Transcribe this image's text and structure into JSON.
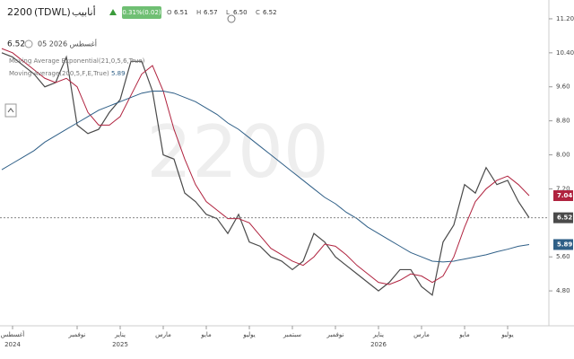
{
  "header": {
    "code": "2200",
    "exchange": "(TDWL)",
    "name": "أنابيب",
    "change_badge": "0.31%(0.02)",
    "ohlc": [
      {
        "label": "O",
        "value": "6.51"
      },
      {
        "label": "H",
        "value": "6.57"
      },
      {
        "label": "L",
        "value": "6.50"
      },
      {
        "label": "C",
        "value": "6.52"
      }
    ],
    "last_price": "6.52",
    "date": "05 2026 أغسطس"
  },
  "chart_data": {
    "type": "line",
    "categories": [
      null,
      "أغسطس",
      null,
      null,
      null,
      null,
      null,
      "نوفمبر",
      null,
      null,
      null,
      "يناير",
      null,
      null,
      null,
      "مارس",
      null,
      null,
      null,
      "مايو",
      null,
      null,
      null,
      "يوليو",
      null,
      null,
      null,
      "سبتمبر",
      null,
      null,
      null,
      "نوفمبر",
      null,
      null,
      null,
      "يناير",
      null,
      null,
      null,
      "مارس",
      null,
      null,
      null,
      "مايو",
      null,
      null,
      null,
      "يوليو",
      null,
      null
    ],
    "category_years": [
      null,
      "2024",
      null,
      null,
      null,
      null,
      null,
      null,
      null,
      null,
      null,
      "2025",
      null,
      null,
      null,
      null,
      null,
      null,
      null,
      null,
      null,
      null,
      null,
      null,
      null,
      null,
      null,
      null,
      null,
      null,
      null,
      null,
      null,
      null,
      null,
      "2026",
      null,
      null,
      null,
      null,
      null,
      null,
      null,
      null,
      null,
      null,
      null,
      null,
      null,
      null
    ],
    "series": [
      {
        "color": "#4a4a4a",
        "values": [
          10.4,
          10.3,
          10.1,
          9.9,
          9.6,
          9.7,
          10.3,
          8.7,
          8.5,
          8.6,
          9.0,
          9.3,
          10.2,
          10.2,
          9.5,
          8.0,
          7.9,
          7.1,
          6.9,
          6.6,
          6.5,
          6.15,
          6.6,
          5.95,
          5.85,
          5.6,
          5.5,
          5.3,
          5.5,
          6.15,
          5.95,
          5.6,
          5.4,
          5.2,
          5.0,
          4.8,
          5.0,
          5.3,
          5.3,
          4.9,
          4.7,
          5.95,
          6.35,
          7.3,
          7.1,
          7.7,
          7.3,
          7.4,
          6.9,
          6.52
        ]
      },
      {
        "name": "Moving Average Exponential(21,0,5,6,True)",
        "color": "#b0233f",
        "values": [
          10.5,
          10.4,
          10.2,
          10.0,
          9.8,
          9.7,
          9.8,
          9.6,
          9.0,
          8.7,
          8.7,
          8.9,
          9.4,
          9.9,
          10.1,
          9.5,
          8.6,
          7.9,
          7.3,
          6.9,
          6.7,
          6.5,
          6.5,
          6.4,
          6.1,
          5.8,
          5.65,
          5.5,
          5.4,
          5.6,
          5.9,
          5.85,
          5.65,
          5.4,
          5.2,
          5.0,
          4.95,
          5.05,
          5.2,
          5.15,
          5.0,
          5.15,
          5.6,
          6.3,
          6.9,
          7.2,
          7.4,
          7.5,
          7.3,
          7.04
        ]
      },
      {
        "name": "Moving Average(200,5,F,E,True)",
        "color": "#2f5f87",
        "values": [
          7.65,
          7.8,
          7.95,
          8.1,
          8.3,
          8.45,
          8.6,
          8.75,
          8.9,
          9.05,
          9.15,
          9.25,
          9.35,
          9.45,
          9.5,
          9.5,
          9.45,
          9.35,
          9.25,
          9.1,
          8.95,
          8.75,
          8.6,
          8.4,
          8.2,
          8.0,
          7.8,
          7.6,
          7.4,
          7.2,
          7.0,
          6.85,
          6.65,
          6.5,
          6.3,
          6.15,
          6.0,
          5.85,
          5.7,
          5.6,
          5.5,
          5.48,
          5.5,
          5.55,
          5.6,
          5.65,
          5.72,
          5.78,
          5.85,
          5.89
        ]
      }
    ],
    "ylim": [
      4.0,
      11.6
    ],
    "yticks": [
      {
        "value": 11.2,
        "label": "11.20"
      },
      {
        "value": 10.4,
        "label": "10.40"
      },
      {
        "value": 9.6,
        "label": "9.60"
      },
      {
        "value": 8.8,
        "label": "8.80"
      },
      {
        "value": 8.0,
        "label": "8.00"
      },
      {
        "value": 7.2,
        "label": "7.20"
      },
      {
        "value": 5.6,
        "label": "5.60"
      },
      {
        "value": 4.8,
        "label": "4.80"
      }
    ],
    "grid": false
  }
}
